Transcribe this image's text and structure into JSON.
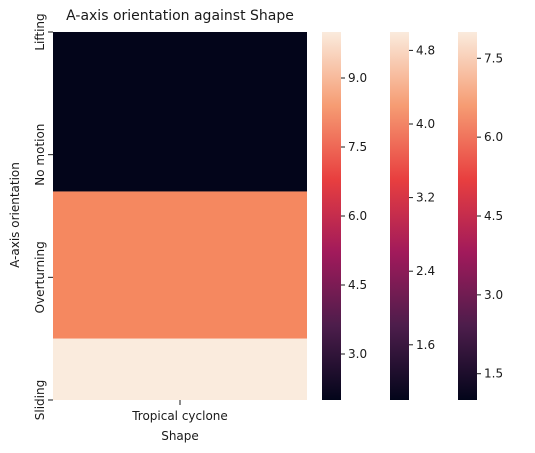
{
  "chart_data": {
    "type": "heatmap",
    "title": "A-axis orientation against Shape",
    "xlabel": "Shape",
    "ylabel": "A-axis orientation",
    "x_categories": [
      "Tropical cyclone"
    ],
    "y_categories": [
      "Lifting",
      "No motion",
      "Overturning",
      "Sliding"
    ],
    "y_tick_positions": [
      0,
      1,
      2,
      3
    ],
    "cells": [
      {
        "y_from": 0,
        "y_to": 1.3,
        "value": 2.0,
        "color": "#03051a"
      },
      {
        "y_from": 1.3,
        "y_to": 2.5,
        "value": 7.2,
        "color": "#f58860"
      },
      {
        "y_from": 2.5,
        "y_to": 3.0,
        "value": 10.0,
        "color": "#faebdd"
      }
    ],
    "y_range": [
      0,
      3
    ],
    "grid": false,
    "colormap": "rocket",
    "colorbar_stops": [
      "#03051a",
      "#4c1d4b",
      "#a11a5b",
      "#e83f3f",
      "#f69c73",
      "#faebdd"
    ],
    "colorbars": [
      {
        "range": [
          2.0,
          10.0
        ],
        "ticks": [
          "3.0",
          "4.5",
          "6.0",
          "7.5",
          "9.0"
        ],
        "tick_values": [
          3.0,
          4.5,
          6.0,
          7.5,
          9.0
        ]
      },
      {
        "range": [
          1.0,
          5.0
        ],
        "ticks": [
          "1.6",
          "2.4",
          "3.2",
          "4.0",
          "4.8"
        ],
        "tick_values": [
          1.6,
          2.4,
          3.2,
          4.0,
          4.8
        ]
      },
      {
        "range": [
          1.0,
          8.0
        ],
        "ticks": [
          "1.5",
          "3.0",
          "4.5",
          "6.0",
          "7.5"
        ],
        "tick_values": [
          1.5,
          3.0,
          4.5,
          6.0,
          7.5
        ]
      }
    ]
  }
}
